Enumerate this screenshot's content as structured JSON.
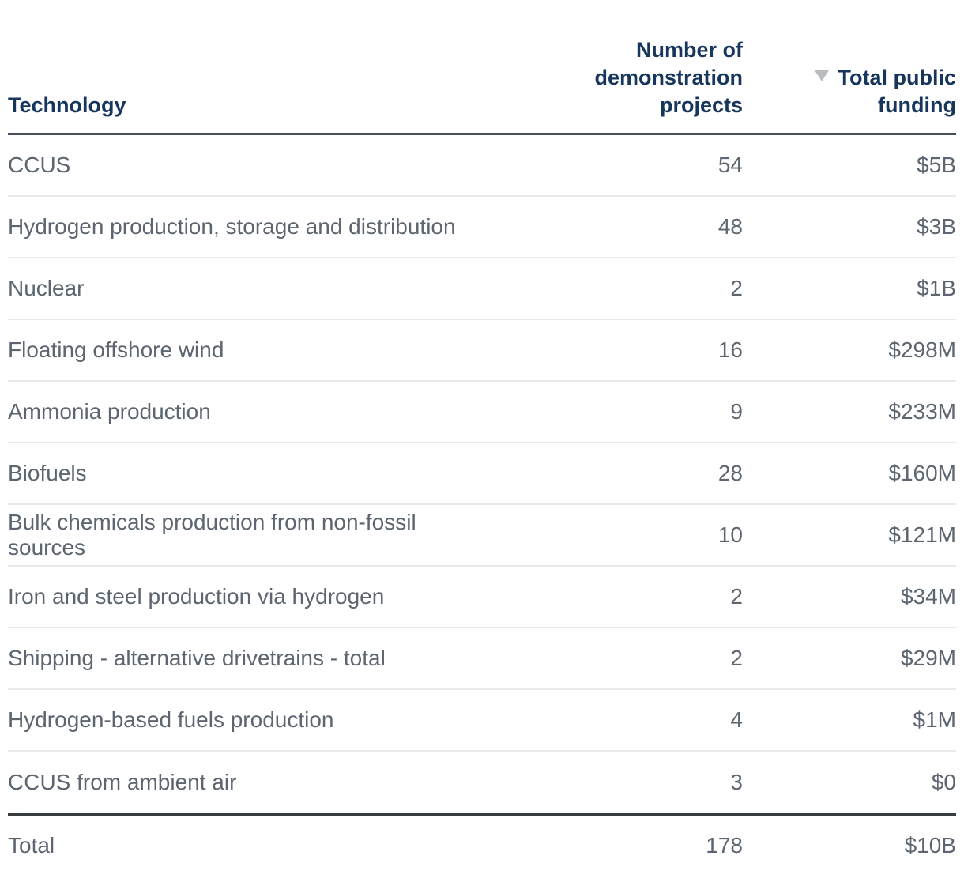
{
  "colors": {
    "header-text": "#17365c",
    "body-text": "#5d6670",
    "divider-light": "#eaeaea",
    "divider-dark-header": "#474f5a",
    "divider-dark-total": "#383d42",
    "sort-icon": "#b9bdc2",
    "background": "#ffffff"
  },
  "table": {
    "header": {
      "technology_label": "Technology",
      "projects_lines": [
        "Number of",
        "demonstration",
        "projects"
      ],
      "funding_lines": [
        "Total public",
        "funding"
      ],
      "sort_icon": "triangle-down-icon",
      "sort_direction": "descending"
    },
    "rows": [
      {
        "technology": "CCUS",
        "projects": "54",
        "funding": "$5B"
      },
      {
        "technology": "Hydrogen production, storage and distribution",
        "projects": "48",
        "funding": "$3B"
      },
      {
        "technology": "Nuclear",
        "projects": "2",
        "funding": "$1B"
      },
      {
        "technology": "Floating offshore wind",
        "projects": "16",
        "funding": "$298M"
      },
      {
        "technology": "Ammonia production",
        "projects": "9",
        "funding": "$233M"
      },
      {
        "technology": "Biofuels",
        "projects": "28",
        "funding": "$160M"
      },
      {
        "technology": "Bulk chemicals production from non-fossil sources",
        "projects": "10",
        "funding": "$121M"
      },
      {
        "technology": "Iron and steel production via hydrogen",
        "projects": "2",
        "funding": "$34M"
      },
      {
        "technology": "Shipping - alternative drivetrains - total",
        "projects": "2",
        "funding": "$29M"
      },
      {
        "technology": "Hydrogen-based fuels production",
        "projects": "4",
        "funding": "$1M"
      },
      {
        "technology": "CCUS from ambient air",
        "projects": "3",
        "funding": "$0"
      }
    ],
    "total": {
      "technology": "Total",
      "projects": "178",
      "funding": "$10B"
    }
  }
}
